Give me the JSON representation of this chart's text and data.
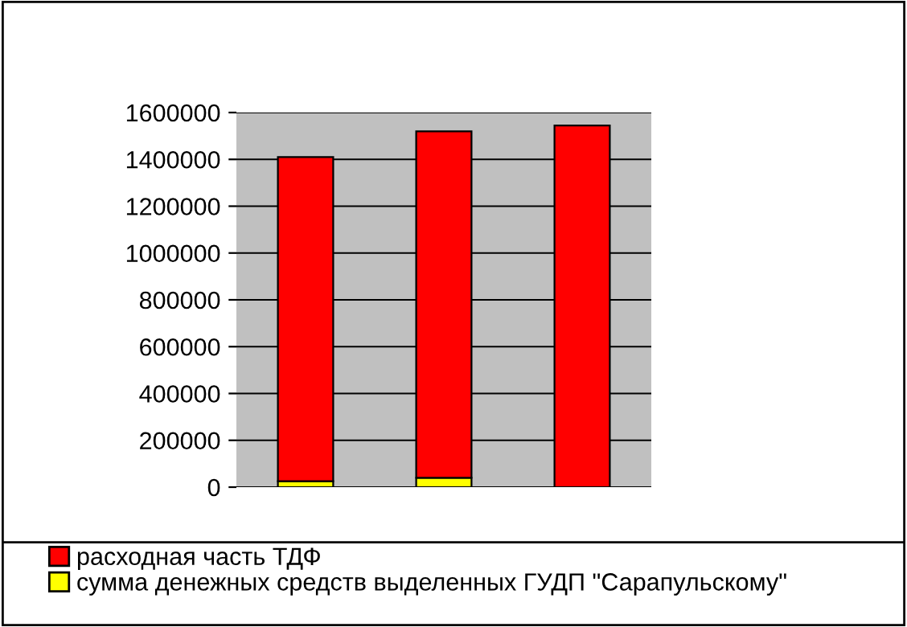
{
  "chart_data": {
    "type": "bar",
    "stacked": true,
    "categories": [
      null,
      null,
      null
    ],
    "series": [
      {
        "name": "сумма денежных средств выделенных ГУДП \"Сарапульскому\"",
        "color": "#ffff00",
        "values": [
          25000,
          40000,
          null
        ]
      },
      {
        "name": "расходная часть ТДФ",
        "color": "#ff0000",
        "values": [
          1385000,
          1480000,
          1545000
        ]
      }
    ],
    "ylim": [
      0,
      1600000
    ],
    "yticks": [
      0,
      200000,
      400000,
      600000,
      800000,
      1000000,
      1200000,
      1400000,
      1600000
    ],
    "grid": "y",
    "legend": "bottom"
  }
}
